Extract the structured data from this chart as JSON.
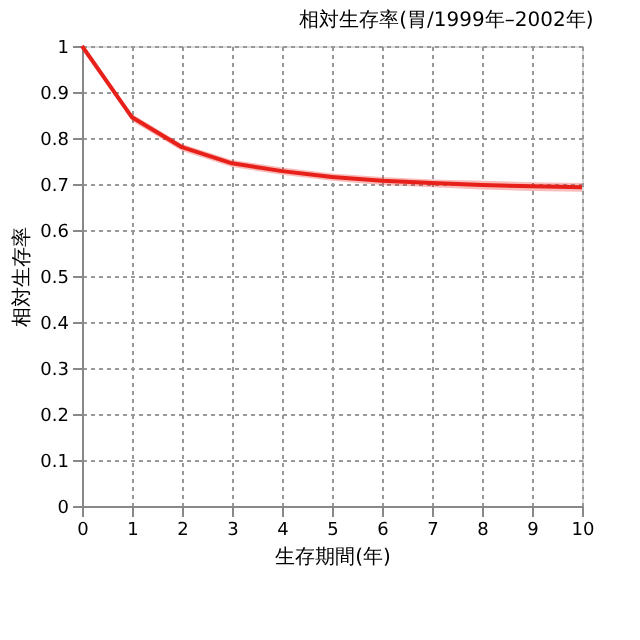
{
  "chart_data": {
    "type": "line",
    "title": "相対生存率(胃/1999年–2002年)",
    "xlabel": "生存期間(年)",
    "ylabel": "相対生存率",
    "x": [
      0,
      1,
      2,
      3,
      4,
      5,
      6,
      7,
      8,
      9,
      10
    ],
    "series": [
      {
        "color": "#e8201a",
        "values": [
          1,
          0.845,
          0.78,
          0.745,
          0.728,
          0.715,
          0.707,
          0.702,
          0.698,
          0.695,
          0.693
        ],
        "lower": [
          1,
          0.837,
          0.772,
          0.737,
          0.72,
          0.707,
          0.698,
          0.693,
          0.688,
          0.685,
          0.683
        ],
        "upper": [
          1,
          0.852,
          0.787,
          0.752,
          0.736,
          0.723,
          0.715,
          0.71,
          0.707,
          0.704,
          0.702
        ]
      }
    ],
    "xlim": [
      0,
      10
    ],
    "ylim": [
      0,
      1
    ],
    "xticks": [
      0,
      1,
      2,
      3,
      4,
      5,
      6,
      7,
      8,
      9,
      10
    ],
    "yticks": [
      0,
      0.1,
      0.2,
      0.3,
      0.4,
      0.5,
      0.6,
      0.7,
      0.8,
      0.9,
      1
    ],
    "grid": true,
    "legend": false,
    "marker": "none",
    "line_style": "solid"
  }
}
